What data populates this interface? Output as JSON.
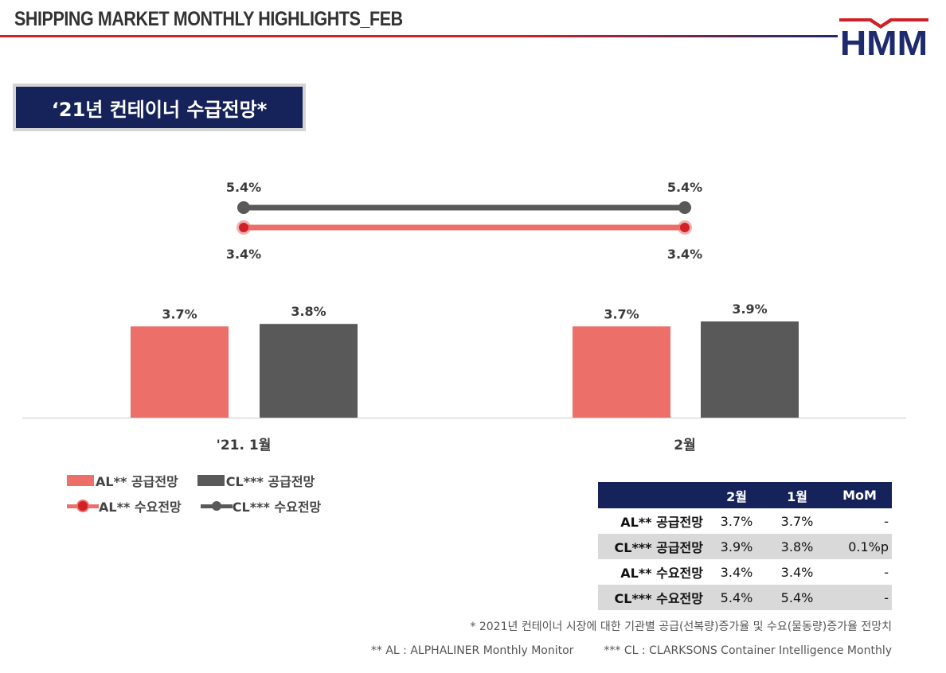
{
  "header": {
    "title": "SHIPPING MARKET MONTHLY HIGHLIGHTS_FEB",
    "logo_text": "HMM"
  },
  "section_title": "‘21년 컨테이너 수급전망*",
  "colors": {
    "al": "#ec6f69",
    "cl": "#595959",
    "navy": "#16235b",
    "red": "#cf2127"
  },
  "chart_data": {
    "type": "bar",
    "categories": [
      "'21. 1월",
      "2월"
    ],
    "series": [
      {
        "name": "AL** 공급전망",
        "kind": "bar",
        "values": [
          3.7,
          3.7
        ],
        "labels": [
          "3.7%",
          "3.7%"
        ]
      },
      {
        "name": "CL*** 공급전망",
        "kind": "bar",
        "values": [
          3.8,
          3.9
        ],
        "labels": [
          "3.8%",
          "3.9%"
        ]
      },
      {
        "name": "AL** 수요전망",
        "kind": "line",
        "values": [
          3.4,
          3.4
        ],
        "labels": [
          "3.4%",
          "3.4%"
        ]
      },
      {
        "name": "CL*** 수요전망",
        "kind": "line",
        "values": [
          5.4,
          5.4
        ],
        "labels": [
          "5.4%",
          "5.4%"
        ]
      }
    ]
  },
  "legend": [
    {
      "label": "AL** 공급전망",
      "kind": "bar",
      "color": "#ec6f69"
    },
    {
      "label": "CL*** 공급전망",
      "kind": "bar",
      "color": "#595959"
    },
    {
      "label": "AL** 수요전망",
      "kind": "line",
      "color": "#ec6f69"
    },
    {
      "label": "CL*** 수요전망",
      "kind": "line",
      "color": "#595959"
    }
  ],
  "table": {
    "headers": [
      "",
      "2월",
      "1월",
      "MoM"
    ],
    "rows": [
      {
        "label": "AL** 공급전망",
        "feb": "3.7%",
        "jan": "3.7%",
        "mom": "-"
      },
      {
        "label": "CL*** 공급전망",
        "feb": "3.9%",
        "jan": "3.8%",
        "mom": "0.1%p"
      },
      {
        "label": "AL** 수요전망",
        "feb": "3.4%",
        "jan": "3.4%",
        "mom": "-"
      },
      {
        "label": "CL*** 수요전망",
        "feb": "5.4%",
        "jan": "5.4%",
        "mom": "-"
      }
    ]
  },
  "footnotes": {
    "note1": "* 2021년 컨테이너 시장에 대한 기관별 공급(선복량)증가율 및 수요(물동량)증가율 전망치",
    "note2": "** AL : ALPHALINER Monthly Monitor",
    "note3": "*** CL : CLARKSONS Container Intelligence Monthly"
  }
}
